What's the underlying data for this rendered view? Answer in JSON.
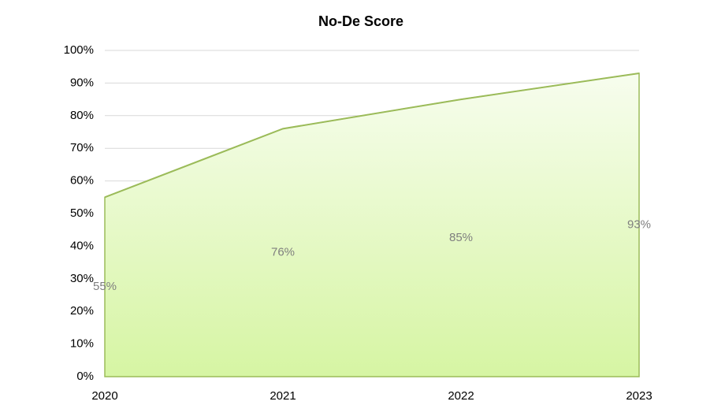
{
  "chart_data": {
    "type": "area",
    "title": "No-De Score",
    "categories": [
      "2020",
      "2021",
      "2022",
      "2023"
    ],
    "values": [
      55,
      76,
      85,
      93
    ],
    "value_labels": [
      "55%",
      "76%",
      "85%",
      "93%"
    ],
    "color": "#9bbb59",
    "ylim": [
      0,
      100
    ],
    "yticks": [
      {
        "value": 0,
        "label": "0%"
      },
      {
        "value": 10,
        "label": "10%"
      },
      {
        "value": 20,
        "label": "20%"
      },
      {
        "value": 30,
        "label": "30%"
      },
      {
        "value": 40,
        "label": "40%"
      },
      {
        "value": 50,
        "label": "50%"
      },
      {
        "value": 60,
        "label": "60%"
      },
      {
        "value": 70,
        "label": "70%"
      },
      {
        "value": 80,
        "label": "80%"
      },
      {
        "value": 90,
        "label": "90%"
      },
      {
        "value": 100,
        "label": "100%"
      }
    ],
    "grid": true
  }
}
